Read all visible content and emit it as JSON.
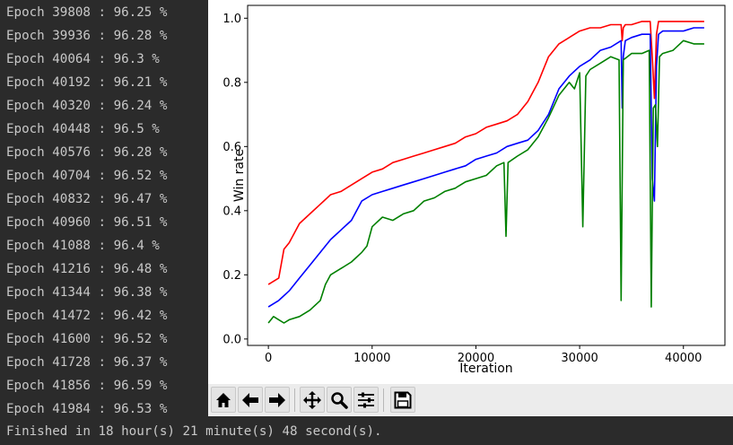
{
  "console": {
    "lines": [
      "Epoch 39808 : 96.25 %",
      "Epoch 39936 : 96.28 %",
      "Epoch 40064 : 96.3 %",
      "Epoch 40192 : 96.21 %",
      "Epoch 40320 : 96.24 %",
      "Epoch 40448 : 96.5 %",
      "Epoch 40576 : 96.28 %",
      "Epoch 40704 : 96.52 %",
      "Epoch 40832 : 96.47 %",
      "Epoch 40960 : 96.51 %",
      "Epoch 41088 : 96.4 %",
      "Epoch 41216 : 96.48 %",
      "Epoch 41344 : 96.38 %",
      "Epoch 41472 : 96.42 %",
      "Epoch 41600 : 96.52 %",
      "Epoch 41728 : 96.37 %",
      "Epoch 41856 : 96.59 %",
      "Epoch 41984 : 96.53 %"
    ],
    "footer": "Finished in 18 hour(s) 21 minute(s) 48 second(s)."
  },
  "toolbar": {
    "buttons": [
      "home-icon",
      "back-arrow-icon",
      "forward-arrow-icon",
      "pan-icon",
      "zoom-icon",
      "subplots-icon",
      "save-icon"
    ]
  },
  "chart_data": {
    "type": "line",
    "title": "",
    "xlabel": "Iteration",
    "ylabel": "Win rate",
    "xlim": [
      -2000,
      44000
    ],
    "ylim": [
      -0.02,
      1.04
    ],
    "xticks": [
      0,
      10000,
      20000,
      30000,
      40000
    ],
    "xtick_labels": [
      "0",
      "10000",
      "20000",
      "30000",
      "40000"
    ],
    "yticks": [
      0.0,
      0.2,
      0.4,
      0.6,
      0.8,
      1.0
    ],
    "ytick_labels": [
      "0.0",
      "0.2",
      "0.4",
      "0.6",
      "0.8",
      "1.0"
    ],
    "grid": false,
    "series": [
      {
        "color": "#ff0000",
        "x": [
          0,
          1000,
          1500,
          2000,
          3000,
          4000,
          5000,
          6000,
          7000,
          8000,
          9000,
          10000,
          11000,
          12000,
          13000,
          14000,
          15000,
          16000,
          17000,
          18000,
          19000,
          20000,
          21000,
          22000,
          23000,
          24000,
          25000,
          26000,
          27000,
          28000,
          29000,
          30000,
          31000,
          32000,
          33000,
          34000,
          34100,
          34200,
          34400,
          35000,
          36000,
          36800,
          37000,
          37200,
          37400,
          37600,
          38000,
          39000,
          40000,
          41000,
          42000
        ],
        "y": [
          0.17,
          0.19,
          0.28,
          0.3,
          0.36,
          0.39,
          0.42,
          0.45,
          0.46,
          0.48,
          0.5,
          0.52,
          0.53,
          0.55,
          0.56,
          0.57,
          0.58,
          0.59,
          0.6,
          0.61,
          0.63,
          0.64,
          0.66,
          0.67,
          0.68,
          0.7,
          0.74,
          0.8,
          0.88,
          0.92,
          0.94,
          0.96,
          0.97,
          0.97,
          0.98,
          0.98,
          0.93,
          0.97,
          0.98,
          0.98,
          0.99,
          0.99,
          0.88,
          0.75,
          0.95,
          0.99,
          0.99,
          0.99,
          0.99,
          0.99,
          0.99
        ]
      },
      {
        "color": "#0000ff",
        "x": [
          0,
          1000,
          2000,
          3000,
          4000,
          5000,
          6000,
          7000,
          8000,
          9000,
          10000,
          11000,
          12000,
          13000,
          14000,
          15000,
          16000,
          17000,
          18000,
          19000,
          20000,
          21000,
          22000,
          23000,
          24000,
          25000,
          26000,
          27000,
          28000,
          29000,
          30000,
          31000,
          32000,
          33000,
          34000,
          34100,
          34200,
          34400,
          35000,
          36000,
          36800,
          37000,
          37200,
          37400,
          37600,
          38000,
          39000,
          40000,
          41000,
          42000
        ],
        "y": [
          0.1,
          0.12,
          0.15,
          0.19,
          0.23,
          0.27,
          0.31,
          0.34,
          0.37,
          0.43,
          0.45,
          0.46,
          0.47,
          0.48,
          0.49,
          0.5,
          0.51,
          0.52,
          0.53,
          0.54,
          0.56,
          0.57,
          0.58,
          0.6,
          0.61,
          0.62,
          0.65,
          0.7,
          0.78,
          0.82,
          0.85,
          0.87,
          0.9,
          0.91,
          0.93,
          0.72,
          0.88,
          0.93,
          0.94,
          0.95,
          0.95,
          0.5,
          0.43,
          0.85,
          0.95,
          0.96,
          0.96,
          0.96,
          0.97,
          0.97
        ]
      },
      {
        "color": "#008000",
        "x": [
          0,
          500,
          1000,
          1500,
          2000,
          3000,
          4000,
          5000,
          5500,
          6000,
          7000,
          8000,
          9000,
          9500,
          10000,
          11000,
          12000,
          13000,
          14000,
          15000,
          16000,
          17000,
          18000,
          19000,
          20000,
          21000,
          22000,
          22700,
          22900,
          23100,
          24000,
          25000,
          26000,
          27000,
          28000,
          29000,
          29500,
          30000,
          30300,
          30600,
          31000,
          32000,
          33000,
          33800,
          34000,
          34200,
          34600,
          35000,
          36000,
          36700,
          36900,
          37100,
          37300,
          37500,
          37700,
          38000,
          39000,
          40000,
          41000,
          42000
        ],
        "y": [
          0.05,
          0.07,
          0.06,
          0.05,
          0.06,
          0.07,
          0.09,
          0.12,
          0.17,
          0.2,
          0.22,
          0.24,
          0.27,
          0.29,
          0.35,
          0.38,
          0.37,
          0.39,
          0.4,
          0.43,
          0.44,
          0.46,
          0.47,
          0.49,
          0.5,
          0.51,
          0.54,
          0.55,
          0.32,
          0.55,
          0.57,
          0.59,
          0.63,
          0.69,
          0.76,
          0.8,
          0.78,
          0.83,
          0.35,
          0.82,
          0.84,
          0.86,
          0.88,
          0.87,
          0.12,
          0.87,
          0.88,
          0.89,
          0.89,
          0.9,
          0.1,
          0.72,
          0.73,
          0.6,
          0.88,
          0.89,
          0.9,
          0.93,
          0.92,
          0.92
        ]
      }
    ]
  }
}
